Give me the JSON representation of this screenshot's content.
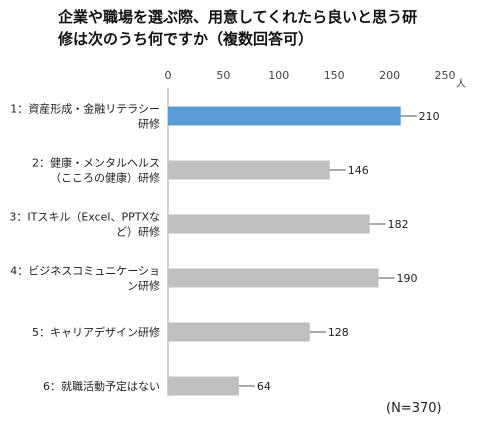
{
  "chart_data": {
    "type": "bar",
    "orientation": "horizontal",
    "title_lines": [
      "企業や職場を選ぶ際、用意してくれたら良いと思う研",
      "修は次のうち何ですか（複数回答可）"
    ],
    "categories": [
      [
        "1：資産形成・金融リテラシー",
        "研修"
      ],
      [
        "2：健康・メンタルヘルス",
        "（こころの健康）研修"
      ],
      [
        "3：ITスキル（Excel、PPTXな",
        "ど）研修"
      ],
      [
        "4：ビジネスコミュニケーショ",
        "ン研修"
      ],
      [
        "5：キャリアデザイン研修"
      ],
      [
        "6：就職活動予定はない"
      ]
    ],
    "values": [
      210,
      146,
      182,
      190,
      128,
      64
    ],
    "xlim": [
      0,
      250
    ],
    "xticks": [
      "0",
      "50",
      "100",
      "150",
      "200",
      "250"
    ],
    "unit_label": "人",
    "note": "(N=370)",
    "colors": {
      "highlight": "#5b9bd5",
      "default": "#bfbfbf",
      "axis": "#a6a6a6"
    },
    "highlight_index": 0,
    "grid": false
  }
}
